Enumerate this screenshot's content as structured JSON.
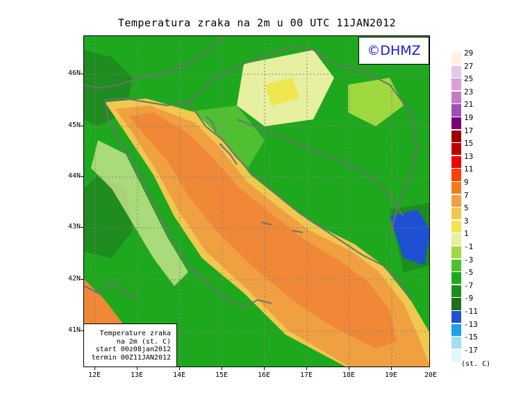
{
  "title": "Temperatura zraka na 2m u 00 UTC 11JAN2012",
  "logo": "©DHMZ",
  "info_box": {
    "line1": "Temperature zraka",
    "line2": "na 2m (st. C)",
    "line3": "start 00z08jan2012",
    "line4": "termin 00Z11JAN2012"
  },
  "lat_labels": [
    "46N",
    "45N",
    "44N",
    "43N",
    "42N",
    "41N"
  ],
  "lon_labels": [
    "12E",
    "13E",
    "14E",
    "15E",
    "16E",
    "17E",
    "18E",
    "19E",
    "20E"
  ],
  "legend": {
    "unit": "(st. C)",
    "labels": [
      "29",
      "27",
      "25",
      "23",
      "21",
      "19",
      "17",
      "15",
      "13",
      "11",
      "9",
      "7",
      "5",
      "3",
      "1",
      "-1",
      "-3",
      "-5",
      "-7",
      "-9",
      "-11",
      "-13",
      "-15",
      "-17"
    ],
    "colors": [
      "#fff0e0",
      "#e6c8e6",
      "#d8a0d8",
      "#c878c8",
      "#a050b4",
      "#780078",
      "#9a0000",
      "#c00000",
      "#f00000",
      "#ff4000",
      "#f07c1c",
      "#f0a040",
      "#f0c850",
      "#f0e650",
      "#e6f0a0",
      "#a0d840",
      "#50c030",
      "#1ea81e",
      "#1e8c1e",
      "#1e6e1e",
      "#1e50d2",
      "#1ea0e6",
      "#a0e0f0",
      "#e0f8f8"
    ]
  },
  "map": {
    "sea_color": "#f08838",
    "coast_color": "#f0a040",
    "land_color": "#1ea81e",
    "border_color": "#707070"
  }
}
